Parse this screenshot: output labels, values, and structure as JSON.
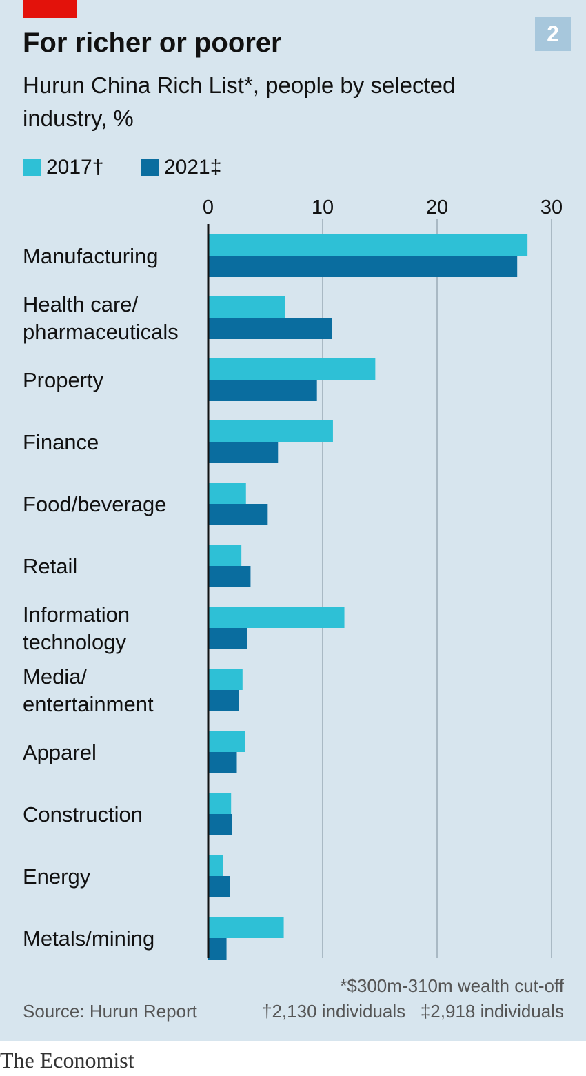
{
  "header": {
    "title": "For richer or poorer",
    "subtitle": "Hurun China Rich List*, people by selected industry, %",
    "chart_number": "2"
  },
  "footer": {
    "source": "Source: Hurun Report",
    "note1": "*$300m-310m wealth cut-off",
    "note2": "†2,130 individuals",
    "note3": "‡2,918 individuals",
    "brand": "The Economist"
  },
  "chart_data": {
    "type": "bar",
    "orientation": "horizontal",
    "title": "For richer or poorer",
    "subtitle": "Hurun China Rich List*, people by selected industry, %",
    "xlim": [
      0,
      30
    ],
    "xticks": [
      "0",
      "10",
      "20",
      "30"
    ],
    "grid": true,
    "legend_position": "top-left",
    "categories": [
      "Manufacturing",
      "Health care/ pharmaceuticals",
      "Property",
      "Finance",
      "Food/beverage",
      "Retail",
      "Information technology",
      "Media/ entertainment",
      "Apparel",
      "Construction",
      "Energy",
      "Metals/mining"
    ],
    "series": [
      {
        "name": "2017†",
        "color": "#2ec0d6",
        "values": [
          27.9,
          6.7,
          14.6,
          10.9,
          3.3,
          2.9,
          11.9,
          3.0,
          3.2,
          2.0,
          1.3,
          6.6
        ]
      },
      {
        "name": "2021‡",
        "color": "#0a6d9f",
        "values": [
          27.0,
          10.8,
          9.5,
          6.1,
          5.2,
          3.7,
          3.4,
          2.7,
          2.5,
          2.1,
          1.9,
          1.6
        ]
      }
    ]
  }
}
